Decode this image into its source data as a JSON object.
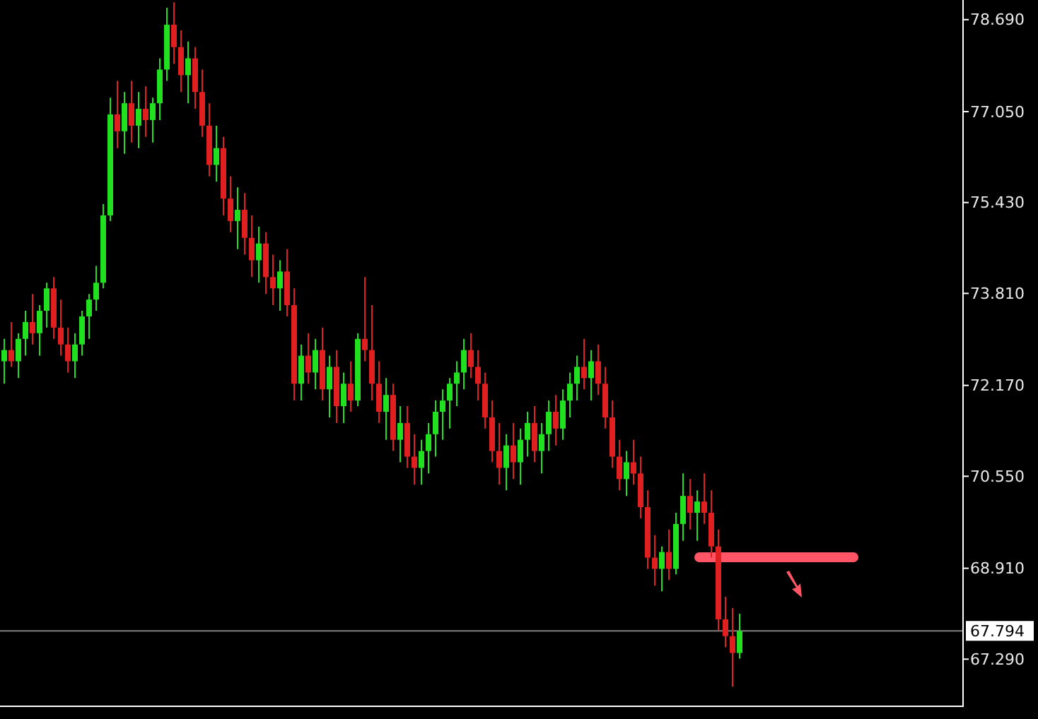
{
  "chart_data": {
    "type": "candlestick",
    "categories": [
      null,
      null,
      null,
      null,
      null,
      null,
      null,
      null,
      null,
      null,
      null,
      null,
      null,
      null,
      null,
      null,
      null,
      null,
      null,
      null,
      null,
      null,
      null,
      null,
      null,
      null,
      null,
      null,
      null,
      null,
      null,
      null,
      null,
      null,
      null,
      null,
      null,
      null,
      null,
      null,
      null,
      null,
      null,
      null,
      null,
      null,
      null,
      null,
      null,
      null,
      null,
      null,
      null,
      null,
      null,
      null,
      null,
      null,
      null,
      null,
      null,
      null,
      null,
      null,
      null,
      null,
      null,
      null,
      null,
      null,
      null,
      null,
      null,
      null,
      null,
      null,
      null,
      null,
      null,
      null,
      null,
      null,
      null,
      null,
      null,
      null,
      null,
      null,
      null,
      null,
      null,
      null,
      null,
      null,
      null,
      null,
      null,
      null,
      null,
      null,
      null,
      null,
      null,
      null,
      null,
      null,
      null,
      null,
      null,
      null,
      null,
      null,
      null,
      null,
      null,
      null,
      null,
      null,
      null,
      null,
      null,
      null,
      null,
      null,
      null,
      null,
      null,
      null,
      null,
      null,
      null,
      null,
      null,
      null,
      null,
      null
    ],
    "ohlc": [
      [
        72.6,
        73.0,
        72.2,
        72.8
      ],
      [
        72.8,
        73.3,
        72.5,
        72.6
      ],
      [
        72.6,
        73.1,
        72.3,
        73.0
      ],
      [
        73.0,
        73.5,
        72.7,
        73.3
      ],
      [
        73.3,
        73.8,
        72.9,
        73.1
      ],
      [
        73.1,
        73.6,
        72.7,
        73.5
      ],
      [
        73.5,
        74.0,
        73.2,
        73.9
      ],
      [
        73.9,
        74.1,
        73.0,
        73.2
      ],
      [
        73.2,
        73.7,
        72.7,
        72.9
      ],
      [
        72.9,
        73.2,
        72.4,
        72.6
      ],
      [
        72.6,
        73.1,
        72.3,
        72.9
      ],
      [
        72.9,
        73.5,
        72.7,
        73.4
      ],
      [
        73.4,
        73.8,
        73.0,
        73.7
      ],
      [
        73.7,
        74.3,
        73.5,
        74.0
      ],
      [
        74.0,
        75.4,
        73.9,
        75.2
      ],
      [
        75.2,
        77.3,
        75.1,
        77.0
      ],
      [
        77.0,
        77.6,
        76.4,
        76.7
      ],
      [
        76.7,
        77.4,
        76.3,
        77.2
      ],
      [
        77.2,
        77.6,
        76.5,
        76.8
      ],
      [
        76.8,
        77.4,
        76.4,
        77.1
      ],
      [
        77.1,
        77.5,
        76.6,
        76.9
      ],
      [
        76.9,
        77.3,
        76.5,
        77.2
      ],
      [
        77.2,
        78.0,
        76.9,
        77.8
      ],
      [
        77.8,
        78.9,
        77.6,
        78.6
      ],
      [
        78.6,
        79.0,
        77.9,
        78.2
      ],
      [
        78.2,
        78.5,
        77.4,
        77.7
      ],
      [
        77.7,
        78.3,
        77.2,
        78.0
      ],
      [
        78.0,
        78.2,
        77.1,
        77.4
      ],
      [
        77.4,
        77.8,
        76.6,
        76.8
      ],
      [
        76.8,
        77.2,
        75.9,
        76.1
      ],
      [
        76.1,
        76.8,
        75.8,
        76.4
      ],
      [
        76.4,
        76.6,
        75.2,
        75.5
      ],
      [
        75.5,
        75.9,
        74.9,
        75.1
      ],
      [
        75.1,
        75.7,
        74.6,
        75.3
      ],
      [
        75.3,
        75.6,
        74.5,
        74.8
      ],
      [
        74.8,
        75.2,
        74.1,
        74.4
      ],
      [
        74.4,
        75.0,
        74.0,
        74.7
      ],
      [
        74.7,
        74.9,
        73.8,
        74.1
      ],
      [
        74.1,
        74.5,
        73.6,
        73.9
      ],
      [
        73.9,
        74.4,
        73.5,
        74.2
      ],
      [
        74.2,
        74.6,
        73.4,
        73.6
      ],
      [
        73.6,
        73.9,
        71.9,
        72.2
      ],
      [
        72.2,
        72.9,
        71.9,
        72.7
      ],
      [
        72.7,
        73.1,
        72.2,
        72.4
      ],
      [
        72.4,
        73.0,
        72.1,
        72.8
      ],
      [
        72.8,
        73.2,
        71.9,
        72.1
      ],
      [
        72.1,
        72.7,
        71.6,
        72.5
      ],
      [
        72.5,
        72.8,
        71.5,
        71.8
      ],
      [
        71.8,
        72.4,
        71.5,
        72.2
      ],
      [
        72.2,
        72.6,
        71.7,
        71.9
      ],
      [
        71.9,
        73.1,
        71.8,
        73.0
      ],
      [
        73.0,
        74.1,
        72.6,
        72.8
      ],
      [
        72.8,
        73.6,
        71.9,
        72.2
      ],
      [
        72.2,
        72.6,
        71.5,
        71.7
      ],
      [
        71.7,
        72.3,
        71.2,
        72.0
      ],
      [
        72.0,
        72.2,
        71.0,
        71.2
      ],
      [
        71.2,
        71.8,
        70.8,
        71.5
      ],
      [
        71.5,
        71.8,
        70.7,
        70.9
      ],
      [
        70.9,
        71.3,
        70.4,
        70.7
      ],
      [
        70.7,
        71.2,
        70.4,
        71.0
      ],
      [
        71.0,
        71.5,
        70.6,
        71.3
      ],
      [
        71.3,
        71.9,
        70.9,
        71.7
      ],
      [
        71.7,
        72.1,
        71.2,
        71.9
      ],
      [
        71.9,
        72.3,
        71.4,
        72.2
      ],
      [
        72.2,
        72.6,
        71.8,
        72.4
      ],
      [
        72.4,
        73.0,
        72.1,
        72.8
      ],
      [
        72.8,
        73.1,
        72.3,
        72.5
      ],
      [
        72.5,
        72.8,
        71.9,
        72.2
      ],
      [
        72.2,
        72.4,
        71.4,
        71.6
      ],
      [
        71.6,
        71.9,
        70.8,
        71.0
      ],
      [
        71.0,
        71.5,
        70.4,
        70.7
      ],
      [
        70.7,
        71.3,
        70.3,
        71.1
      ],
      [
        71.1,
        71.5,
        70.5,
        70.8
      ],
      [
        70.8,
        71.4,
        70.4,
        71.2
      ],
      [
        71.2,
        71.7,
        70.9,
        71.5
      ],
      [
        71.5,
        71.8,
        70.8,
        71.0
      ],
      [
        71.0,
        71.5,
        70.6,
        71.3
      ],
      [
        71.3,
        71.9,
        71.0,
        71.7
      ],
      [
        71.7,
        72.0,
        71.1,
        71.4
      ],
      [
        71.4,
        72.1,
        71.2,
        71.9
      ],
      [
        71.9,
        72.4,
        71.6,
        72.2
      ],
      [
        72.2,
        72.7,
        71.9,
        72.5
      ],
      [
        72.5,
        73.0,
        72.1,
        72.3
      ],
      [
        72.3,
        72.8,
        71.9,
        72.6
      ],
      [
        72.6,
        72.9,
        72.0,
        72.2
      ],
      [
        72.2,
        72.5,
        71.4,
        71.6
      ],
      [
        71.6,
        71.9,
        70.7,
        70.9
      ],
      [
        70.9,
        71.2,
        70.3,
        70.5
      ],
      [
        70.5,
        71.0,
        70.2,
        70.8
      ],
      [
        70.8,
        71.2,
        70.4,
        70.6
      ],
      [
        70.6,
        70.9,
        69.8,
        70.0
      ],
      [
        70.0,
        70.3,
        68.9,
        69.1
      ],
      [
        69.1,
        69.5,
        68.6,
        68.9
      ],
      [
        68.9,
        69.3,
        68.5,
        69.2
      ],
      [
        69.2,
        69.6,
        68.7,
        68.9
      ],
      [
        68.9,
        69.9,
        68.8,
        69.7
      ],
      [
        69.7,
        70.6,
        69.4,
        70.2
      ],
      [
        70.2,
        70.5,
        69.6,
        69.9
      ],
      [
        69.9,
        70.3,
        69.4,
        70.1
      ],
      [
        70.1,
        70.6,
        69.7,
        69.9
      ],
      [
        69.9,
        70.3,
        69.1,
        69.3
      ],
      [
        69.3,
        69.6,
        67.8,
        68.0
      ],
      [
        68.0,
        68.4,
        67.5,
        67.7
      ],
      [
        67.7,
        68.2,
        66.8,
        67.4
      ],
      [
        67.4,
        68.1,
        67.3,
        67.79
      ],
      null,
      null,
      null,
      null,
      null,
      null,
      null,
      null,
      null,
      null,
      null,
      null,
      null,
      null,
      null,
      null,
      null,
      null,
      null,
      null,
      null,
      null,
      null,
      null,
      null,
      null,
      null,
      null,
      null,
      null,
      null
    ],
    "colors": [
      "#20e020",
      "#e02020",
      "#20e020",
      "#20e020",
      "#e02020",
      "#20e020",
      "#20e020",
      "#e02020",
      "#e02020",
      "#e02020",
      "#20e020",
      "#20e020",
      "#20e020",
      "#20e020",
      "#20e020",
      "#20e020",
      "#e02020",
      "#20e020",
      "#e02020",
      "#20e020",
      "#e02020",
      "#20e020",
      "#20e020",
      "#20e020",
      "#e02020",
      "#e02020",
      "#20e020",
      "#e02020",
      "#e02020",
      "#e02020",
      "#20e020",
      "#e02020",
      "#e02020",
      "#20e020",
      "#e02020",
      "#e02020",
      "#20e020",
      "#e02020",
      "#e02020",
      "#20e020",
      "#e02020",
      "#e02020",
      "#20e020",
      "#e02020",
      "#20e020",
      "#e02020",
      "#20e020",
      "#e02020",
      "#20e020",
      "#e02020",
      "#20e020",
      "#e02020",
      "#e02020",
      "#e02020",
      "#20e020",
      "#e02020",
      "#20e020",
      "#e02020",
      "#e02020",
      "#20e020",
      "#20e020",
      "#20e020",
      "#20e020",
      "#20e020",
      "#20e020",
      "#20e020",
      "#e02020",
      "#e02020",
      "#e02020",
      "#e02020",
      "#e02020",
      "#20e020",
      "#e02020",
      "#20e020",
      "#20e020",
      "#e02020",
      "#20e020",
      "#20e020",
      "#e02020",
      "#20e020",
      "#20e020",
      "#20e020",
      "#e02020",
      "#20e020",
      "#e02020",
      "#e02020",
      "#e02020",
      "#e02020",
      "#20e020",
      "#e02020",
      "#e02020",
      "#e02020",
      "#e02020",
      "#20e020",
      "#e02020",
      "#20e020",
      "#20e020",
      "#e02020",
      "#20e020",
      "#e02020",
      "#e02020",
      "#e02020",
      "#e02020",
      "#e02020",
      "#20e020",
      null,
      null,
      null,
      null,
      null,
      null,
      null,
      null,
      null,
      null,
      null,
      null,
      null,
      null,
      null,
      null,
      null,
      null,
      null,
      null,
      null,
      null,
      null,
      null,
      null,
      null,
      null,
      null,
      null,
      null,
      null
    ],
    "ylim": [
      66.45,
      79.04
    ],
    "yticks": [
      {
        "value": 67.29,
        "label": "67.290"
      },
      {
        "value": 68.91,
        "label": "68.910"
      },
      {
        "value": 70.55,
        "label": "70.550"
      },
      {
        "value": 72.17,
        "label": "72.170"
      },
      {
        "value": 73.81,
        "label": "73.810"
      },
      {
        "value": 75.43,
        "label": "75.430"
      },
      {
        "value": 77.05,
        "label": "77.050"
      },
      {
        "value": 78.69,
        "label": "78.690"
      }
    ],
    "tick_labels": "y",
    "grid": false,
    "ref_lines": [
      {
        "axis": "y",
        "value": 67.794,
        "label": "67.794",
        "color": "#808080"
      }
    ]
  }
}
